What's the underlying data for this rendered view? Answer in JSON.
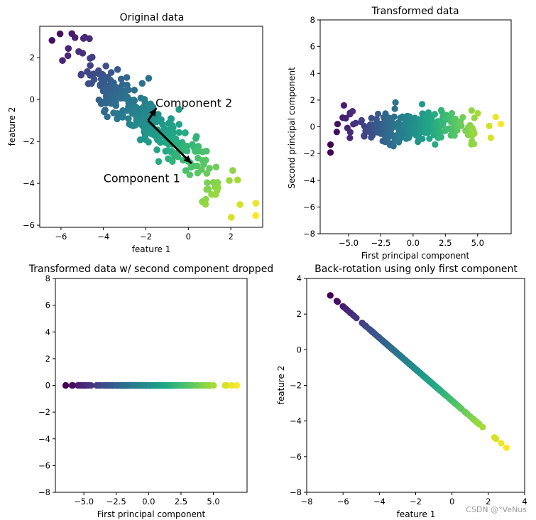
{
  "watermark": "CSDN @°VeNus",
  "chart_data": [
    {
      "type": "scatter",
      "title": "Original data",
      "xlabel": "feature 1",
      "ylabel": "feature 2",
      "xlim": [
        -7,
        3.5
      ],
      "ylim": [
        -6.1,
        3.5
      ],
      "xticks": [
        -6,
        -4,
        -2,
        0,
        2
      ],
      "xtick_labels": [
        "−6",
        "−4",
        "−2",
        "0",
        "2"
      ],
      "yticks": [
        -6,
        -4,
        -2,
        0,
        2
      ],
      "ytick_labels": [
        "−6",
        "−4",
        "−2",
        "0",
        "2"
      ],
      "colormap": "viridis",
      "color_by": "first principal component",
      "mean": [
        -1.9,
        -1.0
      ],
      "pc1_direction": [
        0.728,
        -0.686
      ],
      "pc2_direction": [
        0.686,
        0.728
      ],
      "pc1_spread": 2.6,
      "pc2_spread": 0.45,
      "n_points": 300,
      "annotations": [
        {
          "text": "Component 1",
          "x": -4.0,
          "y": -3.95
        },
        {
          "text": "Component 2",
          "x": -1.55,
          "y": -0.35
        }
      ],
      "arrows": [
        {
          "from": [
            -1.9,
            -1.0
          ],
          "to": [
            0.15,
            -3.05
          ]
        },
        {
          "from": [
            -1.9,
            -1.0
          ],
          "to": [
            -1.5,
            -0.4
          ]
        }
      ]
    },
    {
      "type": "scatter",
      "title": "Transformed data",
      "xlabel": "First principal component",
      "ylabel": "Second principal component",
      "xlim": [
        -7.2,
        7.6
      ],
      "ylim": [
        -8,
        8
      ],
      "xticks": [
        -5,
        -2.5,
        0,
        2.5,
        5
      ],
      "xtick_labels": [
        "−5.0",
        "−2.5",
        "0.0",
        "2.5",
        "5.0"
      ],
      "yticks": [
        -8,
        -6,
        -4,
        -2,
        0,
        2,
        4,
        6,
        8
      ],
      "ytick_labels": [
        "−8",
        "−6",
        "−4",
        "−2",
        "0",
        "2",
        "4",
        "6",
        "8"
      ],
      "colormap": "viridis",
      "x_range": [
        -6.4,
        6.8
      ],
      "y_spread": 0.55
    },
    {
      "type": "scatter",
      "title": "Transformed data w/ second component dropped",
      "xlabel": "First principal component",
      "ylabel": "",
      "xlim": [
        -7.2,
        7.6
      ],
      "ylim": [
        -8,
        8
      ],
      "xticks": [
        -5,
        -2.5,
        0,
        2.5,
        5
      ],
      "xtick_labels": [
        "−5.0",
        "−2.5",
        "0.0",
        "2.5",
        "5.0"
      ],
      "yticks": [
        -8,
        -6,
        -4,
        -2,
        0,
        2,
        4,
        6,
        8
      ],
      "ytick_labels": [
        "−8",
        "−6",
        "−4",
        "−2",
        "0",
        "2",
        "4",
        "6",
        "8"
      ],
      "colormap": "viridis",
      "x_range": [
        -6.4,
        6.8
      ],
      "y_value": 0
    },
    {
      "type": "scatter",
      "title": "Back-rotation using only first component",
      "xlabel": "feature 1",
      "ylabel": "feature 2",
      "xlim": [
        -8,
        4
      ],
      "ylim": [
        -8,
        4
      ],
      "xticks": [
        -8,
        -6,
        -4,
        -2,
        0,
        2,
        4
      ],
      "xtick_labels": [
        "−8",
        "−6",
        "−4",
        "−2",
        "0",
        "2",
        "4"
      ],
      "yticks": [
        -8,
        -6,
        -4,
        -2,
        0,
        2,
        4
      ],
      "ytick_labels": [
        "−8",
        "−6",
        "−4",
        "−2",
        "0",
        "2",
        "4"
      ],
      "colormap": "viridis",
      "line_start": [
        -6.7,
        3.05
      ],
      "line_end": [
        3.0,
        -5.5
      ]
    }
  ]
}
